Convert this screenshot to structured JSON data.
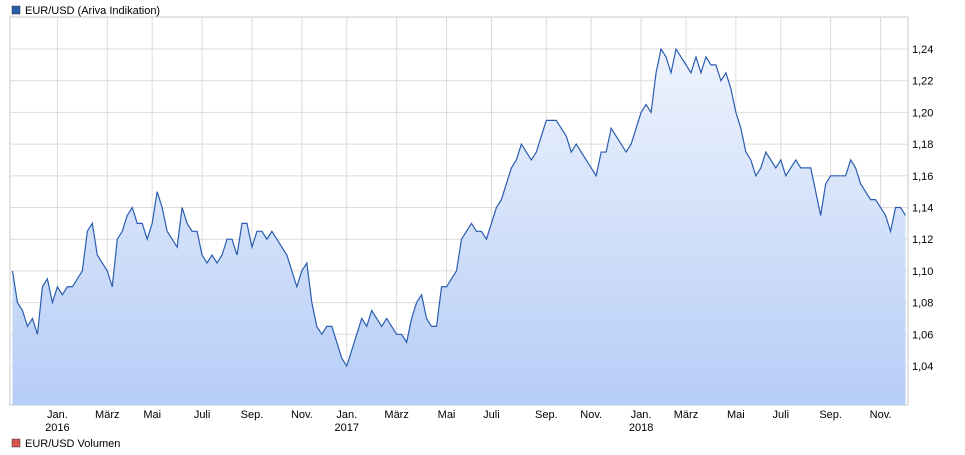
{
  "chart_data": {
    "type": "area",
    "series": [
      {
        "name": "EUR/USD (Ariva Indikation)",
        "color": "#2a5db0",
        "values": [
          1.1,
          1.08,
          1.075,
          1.065,
          1.07,
          1.06,
          1.09,
          1.095,
          1.08,
          1.09,
          1.085,
          1.09,
          1.09,
          1.095,
          1.1,
          1.125,
          1.13,
          1.11,
          1.105,
          1.1,
          1.09,
          1.12,
          1.125,
          1.135,
          1.14,
          1.13,
          1.13,
          1.12,
          1.13,
          1.15,
          1.14,
          1.125,
          1.12,
          1.115,
          1.14,
          1.13,
          1.125,
          1.125,
          1.11,
          1.105,
          1.11,
          1.105,
          1.11,
          1.12,
          1.12,
          1.11,
          1.13,
          1.13,
          1.115,
          1.125,
          1.125,
          1.12,
          1.125,
          1.12,
          1.115,
          1.11,
          1.1,
          1.09,
          1.1,
          1.105,
          1.08,
          1.065,
          1.06,
          1.065,
          1.065,
          1.055,
          1.045,
          1.04,
          1.05,
          1.06,
          1.07,
          1.065,
          1.075,
          1.07,
          1.065,
          1.07,
          1.065,
          1.06,
          1.06,
          1.055,
          1.07,
          1.08,
          1.085,
          1.07,
          1.065,
          1.065,
          1.09,
          1.09,
          1.095,
          1.1,
          1.12,
          1.125,
          1.13,
          1.125,
          1.125,
          1.12,
          1.13,
          1.14,
          1.145,
          1.155,
          1.165,
          1.17,
          1.18,
          1.175,
          1.17,
          1.175,
          1.185,
          1.195,
          1.195,
          1.195,
          1.19,
          1.185,
          1.175,
          1.18,
          1.175,
          1.17,
          1.165,
          1.16,
          1.175,
          1.175,
          1.19,
          1.185,
          1.18,
          1.175,
          1.18,
          1.19,
          1.2,
          1.205,
          1.2,
          1.225,
          1.24,
          1.235,
          1.225,
          1.24,
          1.235,
          1.23,
          1.225,
          1.235,
          1.225,
          1.235,
          1.23,
          1.23,
          1.22,
          1.225,
          1.215,
          1.2,
          1.19,
          1.175,
          1.17,
          1.16,
          1.165,
          1.175,
          1.17,
          1.165,
          1.17,
          1.16,
          1.165,
          1.17,
          1.165,
          1.165,
          1.165,
          1.15,
          1.135,
          1.155,
          1.16,
          1.16,
          1.16,
          1.16,
          1.17,
          1.165,
          1.155,
          1.15,
          1.145,
          1.145,
          1.14,
          1.135,
          1.125,
          1.14,
          1.14,
          1.135
        ]
      }
    ],
    "categories": [
      null,
      null,
      null,
      null,
      null,
      null,
      null,
      null,
      null,
      "Jan.\n2016",
      null,
      null,
      null,
      null,
      null,
      null,
      null,
      null,
      null,
      "März",
      null,
      null,
      null,
      null,
      null,
      null,
      null,
      null,
      "Mai",
      null,
      null,
      null,
      null,
      null,
      null,
      null,
      null,
      null,
      "Juli",
      null,
      null,
      null,
      null,
      null,
      null,
      null,
      null,
      null,
      "Sep.",
      null,
      null,
      null,
      null,
      null,
      null,
      null,
      null,
      null,
      "Nov.",
      null,
      null,
      null,
      null,
      null,
      null,
      null,
      null,
      "Jan.\n2017",
      null,
      null,
      null,
      null,
      null,
      null,
      null,
      null,
      null,
      "März",
      null,
      null,
      null,
      null,
      null,
      null,
      null,
      null,
      null,
      "Mai",
      null,
      null,
      null,
      null,
      null,
      null,
      null,
      null,
      "Juli",
      null,
      null,
      null,
      null,
      null,
      null,
      null,
      null,
      null,
      null,
      "Sep.",
      null,
      null,
      null,
      null,
      null,
      null,
      null,
      null,
      "Nov.",
      null,
      null,
      null,
      null,
      null,
      null,
      null,
      null,
      null,
      "Jan.\n2018",
      null,
      null,
      null,
      null,
      null,
      null,
      null,
      null,
      "März",
      null,
      null,
      null,
      null,
      null,
      null,
      null,
      null,
      null,
      "Mai",
      null,
      null,
      null,
      null,
      null,
      null,
      null,
      null,
      "Juli",
      null,
      null,
      null,
      null,
      null,
      null,
      null,
      null,
      null,
      "Sep.",
      null,
      null,
      null,
      null,
      null,
      null,
      null,
      null,
      null,
      "Nov.",
      null,
      null,
      null,
      null,
      null
    ],
    "ylim": [
      1.0154,
      1.2602
    ],
    "yticks": [
      {
        "value": 1.04,
        "label": "1,04"
      },
      {
        "value": 1.06,
        "label": "1,06"
      },
      {
        "value": 1.08,
        "label": "1,08"
      },
      {
        "value": 1.1,
        "label": "1,10"
      },
      {
        "value": 1.12,
        "label": "1,12"
      },
      {
        "value": 1.14,
        "label": "1,14"
      },
      {
        "value": 1.16,
        "label": "1,16"
      },
      {
        "value": 1.18,
        "label": "1,18"
      },
      {
        "value": 1.2,
        "label": "1,20"
      },
      {
        "value": 1.22,
        "label": "1,22"
      },
      {
        "value": 1.24,
        "label": "1,24"
      }
    ],
    "grid": true,
    "volume_label": "EUR/USD Volumen",
    "volume_color": "#d9534f"
  }
}
